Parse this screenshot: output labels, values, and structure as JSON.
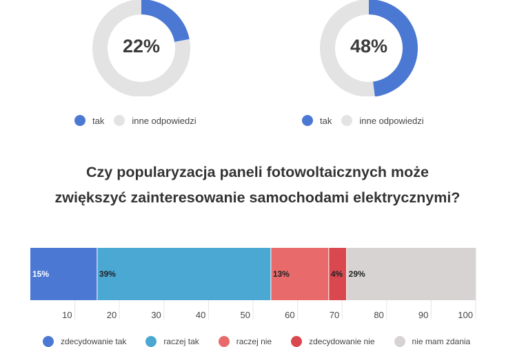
{
  "donuts": [
    {
      "value_label": "22%",
      "value": 22,
      "legend": [
        "tak",
        "inne odpowiedzi"
      ]
    },
    {
      "value_label": "48%",
      "value": 48,
      "legend": [
        "tak",
        "inne odpowiedzi"
      ]
    }
  ],
  "colors": {
    "tak": "#4a78d3",
    "inne": "#e3e3e3",
    "zdecydowanie_tak": "#4a78d3",
    "raczej_tak": "#4aa8d3",
    "raczej_nie": "#e86a6a",
    "zdecydowanie_nie": "#d9484f",
    "nie_mam_zdania": "#d7d3d3"
  },
  "question": {
    "line1": "Czy popularyzacja paneli fotowoltaicznych może",
    "line2": "zwiększyć zainteresowanie samochodami elektrycznymi?"
  },
  "chart_data": {
    "type": "bar",
    "orientation": "horizontal-stacked",
    "xlim": [
      0,
      100
    ],
    "ticks": [
      10,
      20,
      30,
      40,
      50,
      60,
      70,
      80,
      90,
      100
    ],
    "series": [
      {
        "name": "zdecydowanie tak",
        "value": 15,
        "label": "15%",
        "color": "#4a78d3"
      },
      {
        "name": "raczej tak",
        "value": 39,
        "label": "39%",
        "color": "#4aa8d3"
      },
      {
        "name": "raczej nie",
        "value": 13,
        "label": "13%",
        "color": "#e86a6a"
      },
      {
        "name": "zdecydowanie nie",
        "value": 4,
        "label": "4%",
        "color": "#d9484f"
      },
      {
        "name": "nie mam zdania",
        "value": 29,
        "label": "29%",
        "color": "#d7d3d3"
      }
    ],
    "grid": true
  },
  "bottom_legend": [
    "zdecydowanie tak",
    "raczej tak",
    "raczej nie",
    "zdecydowanie nie",
    "nie mam zdania"
  ]
}
